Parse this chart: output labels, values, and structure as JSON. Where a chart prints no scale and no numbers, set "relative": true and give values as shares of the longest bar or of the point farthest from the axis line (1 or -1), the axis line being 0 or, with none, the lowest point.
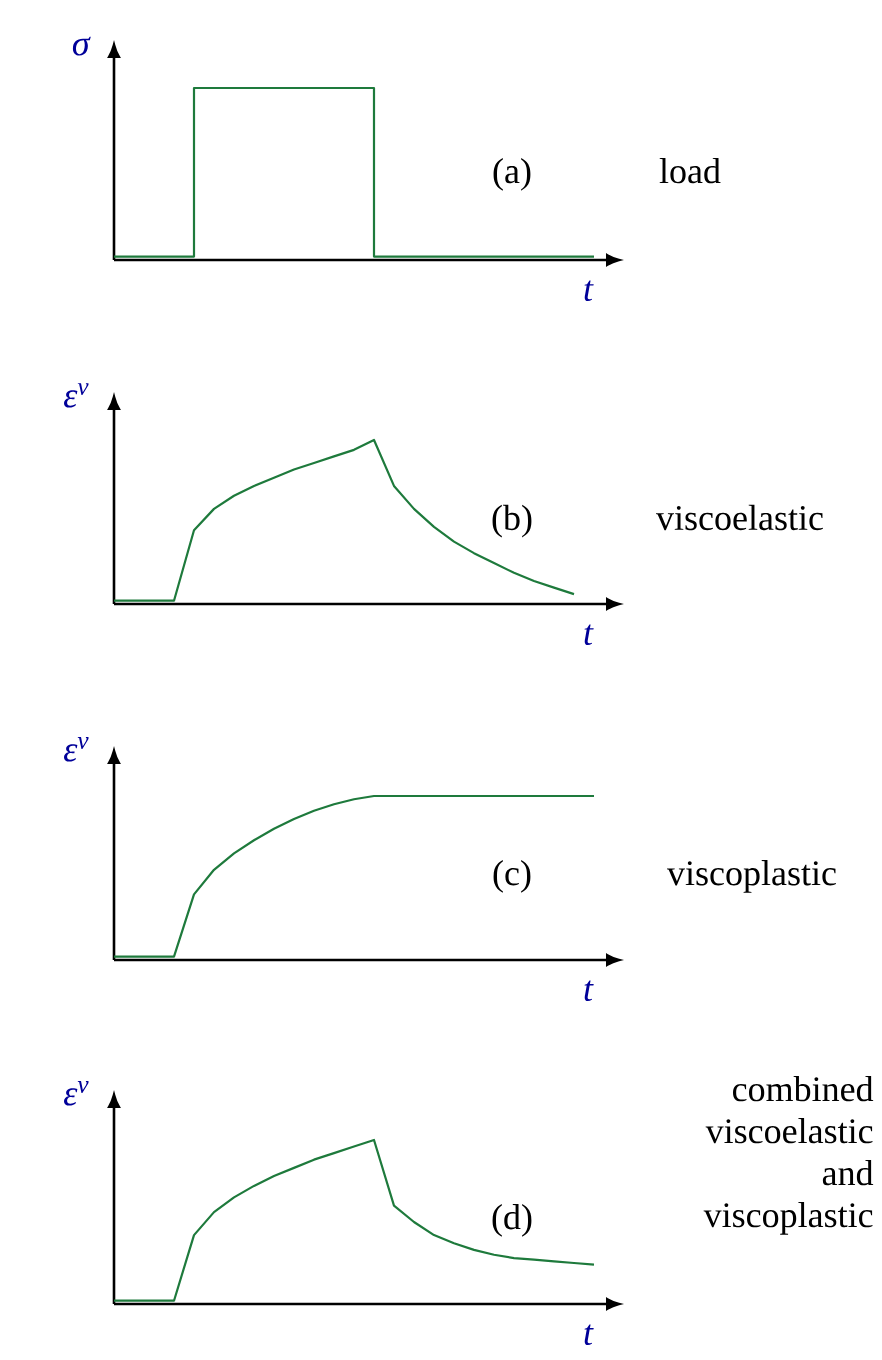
{
  "chart_data": [
    {
      "type": "step",
      "relative": true,
      "ylabel": "σ",
      "xlabel": "t",
      "color": "#1e7a3c",
      "annotations": [
        "(a)",
        "load"
      ],
      "categories": [
        null,
        null,
        null,
        null,
        null,
        null,
        null,
        null,
        null,
        null,
        null,
        null,
        null,
        null,
        null,
        null,
        null,
        null,
        null,
        null,
        null,
        null,
        null,
        null,
        null
      ],
      "values": [
        0.02,
        0.02,
        0.02,
        0.02,
        1,
        1,
        1,
        1,
        1,
        1,
        1,
        1,
        1,
        0.02,
        0.02,
        0.02,
        0.02,
        0.02,
        0.02,
        0.02,
        0.02,
        0.02,
        0.02,
        0.02,
        0.02
      ]
    },
    {
      "type": "line",
      "relative": true,
      "ylabel": "ε$^{v}$",
      "xlabel": "t",
      "color": "#1e7a3c",
      "annotations": [
        "(b)",
        "viscoelastic"
      ],
      "categories": [
        null,
        null,
        null,
        null,
        null,
        null,
        null,
        null,
        null,
        null,
        null,
        null,
        null,
        null,
        null,
        null,
        null,
        null,
        null,
        null,
        null,
        null,
        null,
        null,
        null
      ],
      "values": [
        0.02,
        0.02,
        0.02,
        0.02,
        0.45,
        0.58,
        0.66,
        0.72,
        0.77,
        0.82,
        0.86,
        0.9,
        0.94,
        1,
        0.72,
        0.58,
        0.47,
        0.38,
        0.31,
        0.25,
        0.19,
        0.14,
        0.1,
        0.06,
        null
      ]
    },
    {
      "type": "line",
      "relative": true,
      "ylabel": "ε$^{v}$",
      "xlabel": "t",
      "color": "#1e7a3c",
      "annotations": [
        "(c)",
        "viscoplastic"
      ],
      "categories": [
        null,
        null,
        null,
        null,
        null,
        null,
        null,
        null,
        null,
        null,
        null,
        null,
        null,
        null,
        null,
        null,
        null,
        null,
        null,
        null,
        null,
        null,
        null,
        null,
        null
      ],
      "values": [
        0.02,
        0.02,
        0.02,
        0.02,
        0.4,
        0.55,
        0.65,
        0.73,
        0.8,
        0.86,
        0.91,
        0.95,
        0.98,
        1,
        1,
        1,
        1,
        1,
        1,
        1,
        1,
        1,
        1,
        1,
        1
      ]
    },
    {
      "type": "line",
      "relative": true,
      "ylabel": "ε$^{v}$",
      "xlabel": "t",
      "color": "#1e7a3c",
      "annotations": [
        "(d)",
        "combined viscoelastic and viscoplastic"
      ],
      "categories": [
        null,
        null,
        null,
        null,
        null,
        null,
        null,
        null,
        null,
        null,
        null,
        null,
        null,
        null,
        null,
        null,
        null,
        null,
        null,
        null,
        null,
        null,
        null,
        null,
        null
      ],
      "values": [
        0.02,
        0.02,
        0.02,
        0.02,
        0.42,
        0.56,
        0.65,
        0.72,
        0.78,
        0.83,
        0.88,
        0.92,
        0.96,
        1,
        0.6,
        0.5,
        0.42,
        0.37,
        0.33,
        0.3,
        0.28,
        0.27,
        0.26,
        0.25,
        0.24
      ]
    }
  ]
}
